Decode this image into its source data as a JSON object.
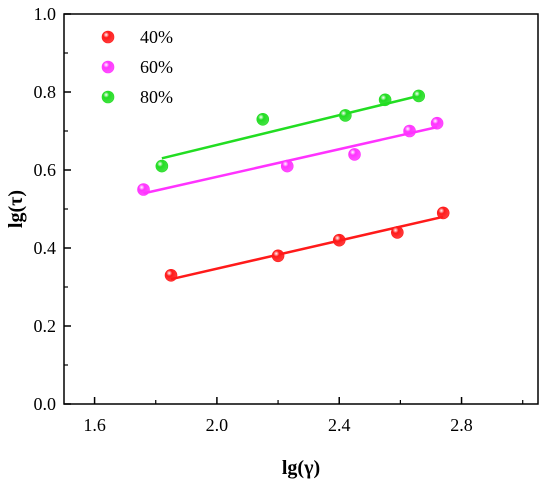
{
  "chart_data": {
    "type": "scatter",
    "xlabel": "lg(γ)",
    "ylabel": "lg(τ)",
    "xlim": [
      1.5,
      3.05
    ],
    "ylim": [
      0.0,
      1.0
    ],
    "x_ticks": [
      1.6,
      2.0,
      2.4,
      2.8
    ],
    "x_tick_labels": [
      "1.6",
      "2.0",
      "2.4",
      "2.8"
    ],
    "y_ticks": [
      0.0,
      0.2,
      0.4,
      0.6,
      0.8,
      1.0
    ],
    "y_tick_labels": [
      "0.0",
      "0.2",
      "0.4",
      "0.6",
      "0.8",
      "1.0"
    ],
    "legend_position": "top-left",
    "grid": false,
    "series": [
      {
        "name": "40%",
        "color": "#ff1a1a",
        "x": [
          1.85,
          2.2,
          2.4,
          2.59,
          2.74
        ],
        "y": [
          0.33,
          0.38,
          0.42,
          0.44,
          0.49
        ],
        "fit": {
          "x": [
            1.85,
            2.74
          ],
          "y": [
            0.32,
            0.48
          ]
        }
      },
      {
        "name": "60%",
        "color": "#ff33ff",
        "x": [
          1.76,
          2.23,
          2.45,
          2.63,
          2.72
        ],
        "y": [
          0.55,
          0.61,
          0.64,
          0.7,
          0.72
        ],
        "fit": {
          "x": [
            1.76,
            2.72
          ],
          "y": [
            0.54,
            0.71
          ]
        }
      },
      {
        "name": "80%",
        "color": "#22dd22",
        "x": [
          1.82,
          2.15,
          2.42,
          2.55,
          2.66
        ],
        "y": [
          0.61,
          0.73,
          0.74,
          0.78,
          0.79
        ],
        "fit": {
          "x": [
            1.82,
            2.66
          ],
          "y": [
            0.63,
            0.79
          ]
        }
      }
    ]
  }
}
